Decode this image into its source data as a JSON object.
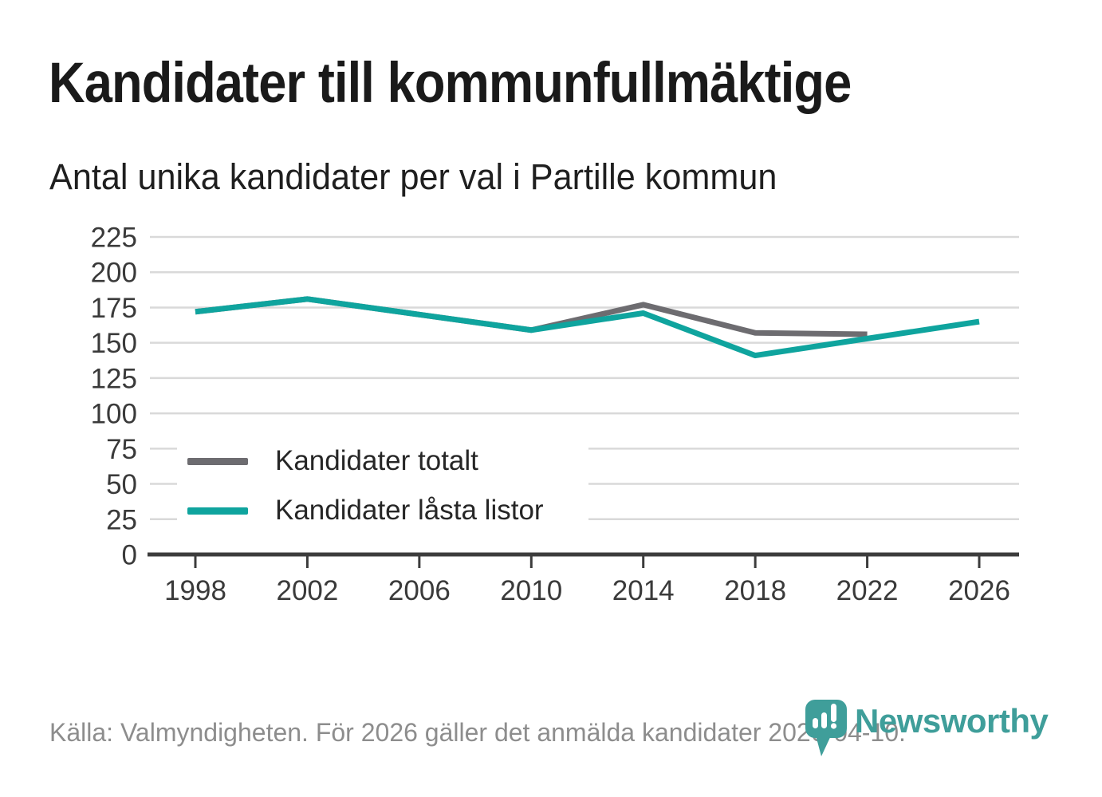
{
  "header": {
    "title": "Kandidater till kommunfullmäktige",
    "subtitle": "Antal unika kandidater per val i Partille kommun"
  },
  "chart_data": {
    "type": "line",
    "title": "Kandidater till kommunfullmäktige",
    "subtitle": "Antal unika kandidater per val i Partille kommun",
    "categories": [
      "1998",
      "2002",
      "2006",
      "2010",
      "2014",
      "2018",
      "2022",
      "2026"
    ],
    "series": [
      {
        "id": "totalt",
        "name": "Kandidater totalt",
        "color": "#6d6c70",
        "values": [
          172,
          181,
          170,
          159,
          177,
          157,
          156,
          null
        ]
      },
      {
        "id": "lasta-listor",
        "name": "Kandidater låsta listor",
        "color": "#0fa49e",
        "values": [
          172,
          181,
          170,
          159,
          171,
          141,
          153,
          165
        ]
      }
    ],
    "xlabel": "",
    "ylabel": "",
    "ylim": [
      0,
      225
    ],
    "ytick_step": 25,
    "yticks": [
      0,
      25,
      50,
      75,
      100,
      125,
      150,
      175,
      200,
      225
    ],
    "grid": "horizontal",
    "legend_position": "inside-bottom-left",
    "axis_color": "#3c3c3c",
    "gridline_color": "#d9d9d9"
  },
  "footer": {
    "source_text": "Källa: Valmyndigheten. För 2026 gäller det anmälda kandidater 2026-04-10."
  },
  "brand": {
    "wordmark": "Newsworthy",
    "logo_icon": "newsworthy-pin-barchart-icon",
    "color": "#3f9e9a"
  }
}
